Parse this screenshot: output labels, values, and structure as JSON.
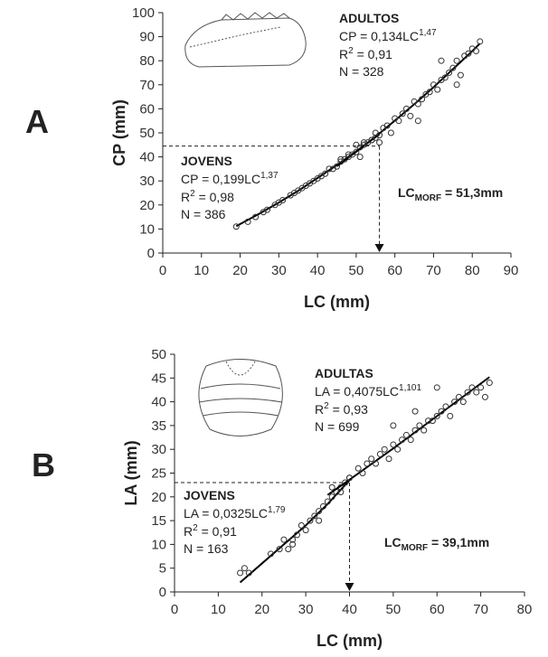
{
  "chart_data": [
    {
      "type": "scatter",
      "panel": "A",
      "xlabel": "LC (mm)",
      "ylabel": "CP (mm)",
      "xlim": [
        0,
        90
      ],
      "xticks": [
        0,
        10,
        20,
        30,
        40,
        50,
        60,
        70,
        80,
        90
      ],
      "ylim": [
        0,
        100
      ],
      "yticks": [
        0,
        10,
        20,
        30,
        40,
        50,
        60,
        70,
        80,
        90,
        100
      ],
      "threshold": {
        "x": 56,
        "y": 44.5,
        "label": {
          "text": "LC",
          "sub": "MORF",
          "after": " = 51,3mm"
        }
      },
      "series": [
        {
          "name": "JOVENS",
          "color": "#333333",
          "x": [
            19,
            22,
            24,
            26,
            27,
            29,
            30,
            31,
            33,
            34,
            35,
            36,
            37,
            38,
            39,
            40,
            41,
            42,
            43,
            44,
            45,
            46,
            47,
            48,
            49,
            50,
            51,
            52,
            53,
            54,
            55,
            56
          ],
          "values": [
            11,
            13,
            15,
            17,
            18,
            20,
            21,
            22,
            24,
            25,
            26,
            27,
            28,
            29,
            30,
            31,
            32,
            33,
            35,
            35,
            36,
            38,
            39,
            40,
            41,
            42,
            44,
            45,
            46,
            47,
            48,
            49
          ],
          "fit_x": [
            19,
            25,
            30,
            35,
            40,
            45,
            50,
            56
          ],
          "fit_values": [
            11.2,
            16.4,
            21.0,
            25.9,
            31.2,
            36.6,
            42.3,
            49.4
          ],
          "equation": {
            "text": "CP = 0,199LC",
            "sup": "1,37"
          },
          "r2": {
            "text": "R",
            "sup": "2",
            "after": " = 0,98"
          },
          "n": "N = 386"
        },
        {
          "name": "ADULTOS",
          "color": "#333333",
          "x": [
            46,
            48,
            50,
            51,
            52,
            54,
            55,
            56,
            57,
            58,
            59,
            60,
            61,
            62,
            63,
            64,
            65,
            66,
            67,
            68,
            69,
            70,
            71,
            72,
            73,
            74,
            75,
            76,
            77,
            78,
            79,
            80,
            81,
            82,
            72,
            76,
            66
          ],
          "values": [
            39,
            41,
            45,
            40,
            46,
            47,
            50,
            46,
            52,
            53,
            50,
            56,
            55,
            58,
            60,
            57,
            63,
            62,
            64,
            66,
            67,
            70,
            68,
            72,
            73,
            75,
            77,
            80,
            74,
            82,
            83,
            85,
            84,
            88,
            80,
            70,
            55
          ],
          "fit_x": [
            45,
            50,
            55,
            60,
            65,
            70,
            75,
            80,
            82
          ],
          "fit_values": [
            36.1,
            42.1,
            48.4,
            55.1,
            61.9,
            69.0,
            76.5,
            84.0,
            87.2
          ],
          "equation": {
            "text": "CP = 0,134LC",
            "sup": "1,47"
          },
          "r2": {
            "text": "R",
            "sup": "2",
            "after": " = 0,91"
          },
          "n": "N = 328"
        }
      ]
    },
    {
      "type": "scatter",
      "panel": "B",
      "xlabel": "LC (mm)",
      "ylabel": "LA (mm)",
      "xlim": [
        0,
        80
      ],
      "xticks": [
        0,
        10,
        20,
        30,
        40,
        50,
        60,
        70,
        80
      ],
      "ylim": [
        0,
        50
      ],
      "yticks": [
        0,
        5,
        10,
        15,
        20,
        25,
        30,
        35,
        40,
        45,
        50
      ],
      "threshold": {
        "x": 40,
        "y": 23,
        "label": {
          "text": "LC",
          "sub": "MORF",
          "after": " = 39,1mm"
        }
      },
      "series": [
        {
          "name": "JOVENS",
          "color": "#333333",
          "x": [
            15,
            16,
            17,
            22,
            24,
            25,
            26,
            27,
            28,
            29,
            30,
            31,
            32,
            33,
            34,
            35,
            36,
            37,
            38,
            39,
            40,
            27,
            33
          ],
          "values": [
            4,
            5,
            4,
            8,
            9,
            11,
            9,
            11,
            12,
            14,
            13,
            15,
            16,
            17,
            18,
            19,
            20,
            21,
            22,
            23,
            24,
            10,
            15
          ],
          "fit_x": [
            15,
            20,
            25,
            30,
            35,
            40
          ],
          "fit_values": [
            2,
            6,
            10,
            14,
            18.5,
            23.5
          ],
          "equation": {
            "text": "LA = 0,0325LC",
            "sup": "1,79"
          },
          "r2": {
            "text": "R",
            "sup": "2",
            "after": " = 0,91"
          },
          "n": "N = 163"
        },
        {
          "name": "ADULTAS",
          "color": "#333333",
          "x": [
            36,
            38,
            40,
            42,
            43,
            44,
            45,
            46,
            47,
            48,
            49,
            50,
            51,
            52,
            53,
            54,
            55,
            56,
            57,
            58,
            59,
            60,
            61,
            62,
            63,
            64,
            65,
            66,
            67,
            68,
            69,
            70,
            71,
            72,
            60,
            55,
            50
          ],
          "values": [
            22,
            21,
            24,
            26,
            25,
            27,
            28,
            27,
            29,
            30,
            28,
            31,
            30,
            32,
            33,
            32,
            34,
            35,
            34,
            36,
            36,
            37,
            38,
            39,
            37,
            40,
            41,
            40,
            42,
            43,
            42,
            43,
            41,
            44,
            43,
            38,
            35
          ],
          "fit_x": [
            35,
            40,
            50,
            60,
            72
          ],
          "fit_values": [
            20.4,
            23.6,
            30.2,
            37.0,
            45.2
          ],
          "equation": {
            "text": "LA = 0,4075LC",
            "sup": "1,101"
          },
          "r2": {
            "text": "R",
            "sup": "2",
            "after": " = 0,93"
          },
          "n": "N = 699"
        }
      ]
    }
  ]
}
